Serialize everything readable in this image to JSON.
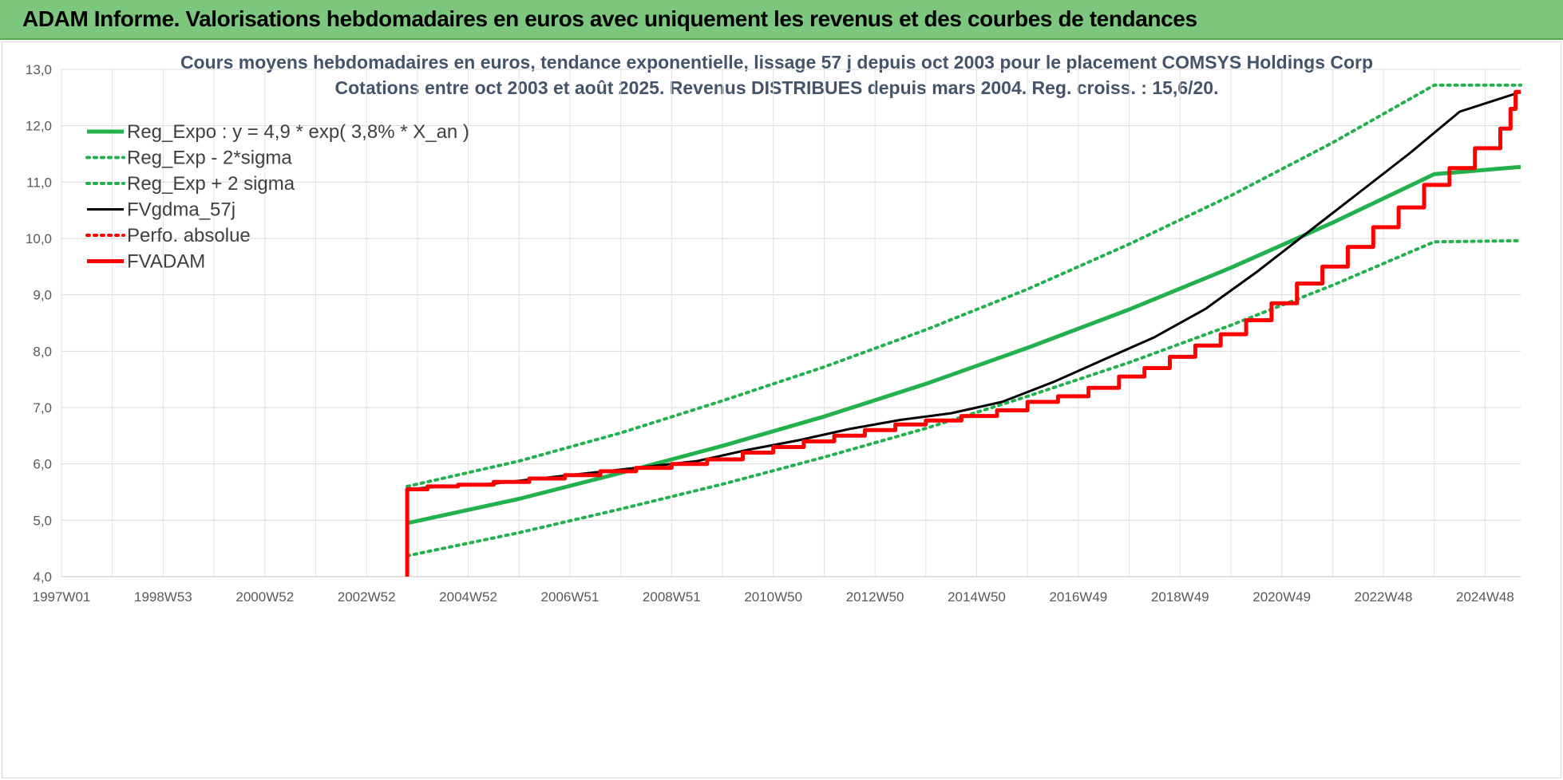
{
  "header": {
    "title": "ADAM Informe. Valorisations hebdomadaires en euros avec uniquement les revenus et des courbes de tendances"
  },
  "chart_data": {
    "type": "line",
    "title": "Cours moyens hebdomadaires en euros, tendance exponentielle, lissage 57 j depuis oct 2003 pour le placement COMSYS Holdings Corp",
    "subtitle": "Cotations entre oct 2003 et août 2025. Revenus DISTRIBUES depuis mars 2004. Reg. croiss. : 15,6/20.",
    "xlabel": "",
    "ylabel": "",
    "xlim": [
      1997.0,
      2025.7
    ],
    "ylim": [
      4.0,
      13.0
    ],
    "y_ticks": [
      "4,0",
      "5,0",
      "6,0",
      "7,0",
      "8,0",
      "9,0",
      "10,0",
      "11,0",
      "12,0",
      "13,0"
    ],
    "x_ticks": [
      {
        "label": "1997W01",
        "x": 1997.0
      },
      {
        "label": "1998W53",
        "x": 1999.0
      },
      {
        "label": "2000W52",
        "x": 2001.0
      },
      {
        "label": "2002W52",
        "x": 2003.0
      },
      {
        "label": "2004W52",
        "x": 2005.0
      },
      {
        "label": "2006W51",
        "x": 2007.0
      },
      {
        "label": "2008W51",
        "x": 2009.0
      },
      {
        "label": "2010W50",
        "x": 2011.0
      },
      {
        "label": "2012W50",
        "x": 2013.0
      },
      {
        "label": "2014W50",
        "x": 2015.0
      },
      {
        "label": "2016W49",
        "x": 2017.0
      },
      {
        "label": "2018W49",
        "x": 2019.0
      },
      {
        "label": "2020W49",
        "x": 2021.0
      },
      {
        "label": "2022W48",
        "x": 2023.0
      },
      {
        "label": "2024W48",
        "x": 2025.0
      }
    ],
    "grid": true,
    "legend_position": "top-left",
    "series": [
      {
        "name": "Reg_Expo : y = 4,9 * exp( 3,8% *  X_an )",
        "color": "#22b14c",
        "style": "solid",
        "points": [
          [
            2003.8,
            4.95
          ],
          [
            2006,
            5.38
          ],
          [
            2008,
            5.84
          ],
          [
            2010,
            6.32
          ],
          [
            2012,
            6.84
          ],
          [
            2014,
            7.42
          ],
          [
            2016,
            8.06
          ],
          [
            2018,
            8.74
          ],
          [
            2020,
            9.48
          ],
          [
            2022,
            10.28
          ],
          [
            2024,
            11.14
          ],
          [
            2025.7,
            11.27
          ]
        ]
      },
      {
        "name": "Reg_Exp - 2*sigma",
        "color": "#22b14c",
        "style": "dotted",
        "points": [
          [
            2003.8,
            4.37
          ],
          [
            2006,
            4.78
          ],
          [
            2008,
            5.2
          ],
          [
            2010,
            5.64
          ],
          [
            2012,
            6.12
          ],
          [
            2014,
            6.63
          ],
          [
            2016,
            7.2
          ],
          [
            2018,
            7.8
          ],
          [
            2020,
            8.46
          ],
          [
            2022,
            9.17
          ],
          [
            2024,
            9.94
          ],
          [
            2025.7,
            9.96
          ]
        ]
      },
      {
        "name": "Reg_Exp + 2 sigma",
        "color": "#22b14c",
        "style": "dotted",
        "points": [
          [
            2003.8,
            5.6
          ],
          [
            2006,
            6.05
          ],
          [
            2008,
            6.55
          ],
          [
            2010,
            7.12
          ],
          [
            2012,
            7.72
          ],
          [
            2014,
            8.38
          ],
          [
            2016,
            9.1
          ],
          [
            2018,
            9.9
          ],
          [
            2020,
            10.76
          ],
          [
            2022,
            11.7
          ],
          [
            2024,
            12.72
          ],
          [
            2025.7,
            12.72
          ]
        ]
      },
      {
        "name": "FVgdma_57j",
        "color": "#000000",
        "style": "solid",
        "points": [
          [
            2003.8,
            5.55
          ],
          [
            2004.5,
            5.6
          ],
          [
            2005.5,
            5.65
          ],
          [
            2006.5,
            5.75
          ],
          [
            2007.5,
            5.85
          ],
          [
            2008.5,
            5.95
          ],
          [
            2009.5,
            6.05
          ],
          [
            2010.5,
            6.25
          ],
          [
            2011.5,
            6.42
          ],
          [
            2012.5,
            6.62
          ],
          [
            2013.5,
            6.78
          ],
          [
            2014.5,
            6.9
          ],
          [
            2015.5,
            7.1
          ],
          [
            2016.5,
            7.45
          ],
          [
            2017.5,
            7.85
          ],
          [
            2018.5,
            8.25
          ],
          [
            2019.5,
            8.75
          ],
          [
            2020.5,
            9.4
          ],
          [
            2021.5,
            10.1
          ],
          [
            2022.5,
            10.8
          ],
          [
            2023.5,
            11.5
          ],
          [
            2024.5,
            12.25
          ],
          [
            2025.7,
            12.6
          ]
        ]
      },
      {
        "name": "Perfo. absolue",
        "color": "#ff0000",
        "style": "dotted",
        "points": []
      },
      {
        "name": "FVADAM",
        "color": "#ff0000",
        "style": "solid-thick",
        "points": [
          [
            2003.8,
            4.0
          ],
          [
            2003.8,
            5.55
          ],
          [
            2004.2,
            5.55
          ],
          [
            2004.2,
            5.6
          ],
          [
            2004.8,
            5.6
          ],
          [
            2004.8,
            5.63
          ],
          [
            2005.5,
            5.63
          ],
          [
            2005.5,
            5.68
          ],
          [
            2006.2,
            5.68
          ],
          [
            2006.2,
            5.74
          ],
          [
            2006.9,
            5.74
          ],
          [
            2006.9,
            5.8
          ],
          [
            2007.6,
            5.8
          ],
          [
            2007.6,
            5.87
          ],
          [
            2008.3,
            5.87
          ],
          [
            2008.3,
            5.93
          ],
          [
            2009.0,
            5.93
          ],
          [
            2009.0,
            6.0
          ],
          [
            2009.7,
            6.0
          ],
          [
            2009.7,
            6.08
          ],
          [
            2010.4,
            6.08
          ],
          [
            2010.4,
            6.2
          ],
          [
            2011.0,
            6.2
          ],
          [
            2011.0,
            6.3
          ],
          [
            2011.6,
            6.3
          ],
          [
            2011.6,
            6.4
          ],
          [
            2012.2,
            6.4
          ],
          [
            2012.2,
            6.5
          ],
          [
            2012.8,
            6.5
          ],
          [
            2012.8,
            6.6
          ],
          [
            2013.4,
            6.6
          ],
          [
            2013.4,
            6.7
          ],
          [
            2014.0,
            6.7
          ],
          [
            2014.0,
            6.77
          ],
          [
            2014.7,
            6.77
          ],
          [
            2014.7,
            6.85
          ],
          [
            2015.4,
            6.85
          ],
          [
            2015.4,
            6.95
          ],
          [
            2016.0,
            6.95
          ],
          [
            2016.0,
            7.1
          ],
          [
            2016.6,
            7.1
          ],
          [
            2016.6,
            7.2
          ],
          [
            2017.2,
            7.2
          ],
          [
            2017.2,
            7.35
          ],
          [
            2017.8,
            7.35
          ],
          [
            2017.8,
            7.55
          ],
          [
            2018.3,
            7.55
          ],
          [
            2018.3,
            7.7
          ],
          [
            2018.8,
            7.7
          ],
          [
            2018.8,
            7.9
          ],
          [
            2019.3,
            7.9
          ],
          [
            2019.3,
            8.1
          ],
          [
            2019.8,
            8.1
          ],
          [
            2019.8,
            8.3
          ],
          [
            2020.3,
            8.3
          ],
          [
            2020.3,
            8.55
          ],
          [
            2020.8,
            8.55
          ],
          [
            2020.8,
            8.85
          ],
          [
            2021.3,
            8.85
          ],
          [
            2021.3,
            9.2
          ],
          [
            2021.8,
            9.2
          ],
          [
            2021.8,
            9.5
          ],
          [
            2022.3,
            9.5
          ],
          [
            2022.3,
            9.85
          ],
          [
            2022.8,
            9.85
          ],
          [
            2022.8,
            10.2
          ],
          [
            2023.3,
            10.2
          ],
          [
            2023.3,
            10.55
          ],
          [
            2023.8,
            10.55
          ],
          [
            2023.8,
            10.95
          ],
          [
            2024.3,
            10.95
          ],
          [
            2024.3,
            11.25
          ],
          [
            2024.8,
            11.25
          ],
          [
            2024.8,
            11.6
          ],
          [
            2025.3,
            11.6
          ],
          [
            2025.3,
            11.95
          ],
          [
            2025.5,
            11.95
          ],
          [
            2025.5,
            12.3
          ],
          [
            2025.6,
            12.3
          ],
          [
            2025.6,
            12.6
          ],
          [
            2025.7,
            12.6
          ]
        ]
      }
    ]
  }
}
